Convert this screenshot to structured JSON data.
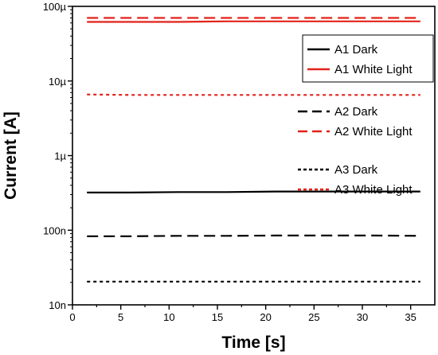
{
  "chart_data": {
    "type": "line",
    "xlabel": "Time [s]",
    "ylabel": "Current [A]",
    "xlim": [
      0,
      37.5
    ],
    "ylim": [
      1e-08,
      0.0001
    ],
    "yscale": "log",
    "x_ticks": [
      0,
      5,
      10,
      15,
      20,
      25,
      30,
      35
    ],
    "x_tick_labels": [
      "0",
      "5",
      "10",
      "15",
      "20",
      "25",
      "30",
      "35"
    ],
    "y_ticks": [
      1e-08,
      1e-07,
      1e-06,
      1e-05,
      0.0001
    ],
    "y_tick_labels": [
      "10n",
      "100n",
      "1µ",
      "10µ",
      "100µ"
    ],
    "grid": false,
    "x": [
      1.5,
      6,
      11,
      16,
      21,
      26,
      31,
      36
    ],
    "series": [
      {
        "name": "A1 Dark",
        "color": "#000000",
        "dash": "solid",
        "values": [
          3.2e-07,
          3.2e-07,
          3.25e-07,
          3.25e-07,
          3.3e-07,
          3.3e-07,
          3.3e-07,
          3.3e-07
        ]
      },
      {
        "name": "A1 White Light",
        "color": "#e32219",
        "dash": "solid",
        "values": [
          6.2e-05,
          6.2e-05,
          6.2e-05,
          6.3e-05,
          6.3e-05,
          6.3e-05,
          6.3e-05,
          6.3e-05
        ]
      },
      {
        "name": "A2 Dark",
        "color": "#000000",
        "dash": "dash",
        "values": [
          8.3e-08,
          8.3e-08,
          8.4e-08,
          8.4e-08,
          8.5e-08,
          8.5e-08,
          8.5e-08,
          8.4e-08
        ]
      },
      {
        "name": "A2 White Light",
        "color": "#e32219",
        "dash": "dash",
        "values": [
          7e-05,
          7e-05,
          7e-05,
          7e-05,
          7e-05,
          7e-05,
          7e-05,
          7e-05
        ]
      },
      {
        "name": "A3 Dark",
        "color": "#000000",
        "dash": "dot",
        "values": [
          2.05e-08,
          2.05e-08,
          2.05e-08,
          2.05e-08,
          2.05e-08,
          2.05e-08,
          2.05e-08,
          2.05e-08
        ]
      },
      {
        "name": "A3 White Light",
        "color": "#e32219",
        "dash": "dot",
        "values": [
          6.6e-06,
          6.5e-06,
          6.5e-06,
          6.5e-06,
          6.5e-06,
          6.5e-06,
          6.5e-06,
          6.5e-06
        ]
      }
    ],
    "legend": {
      "placement": "right",
      "groups": [
        {
          "boxed": true,
          "entries": [
            "A1 Dark",
            "A1 White Light"
          ]
        },
        {
          "boxed": false,
          "entries": [
            "A2 Dark",
            "A2 White Light"
          ]
        },
        {
          "boxed": false,
          "entries": [
            "A3 Dark",
            "A3 White Light"
          ]
        }
      ]
    }
  }
}
